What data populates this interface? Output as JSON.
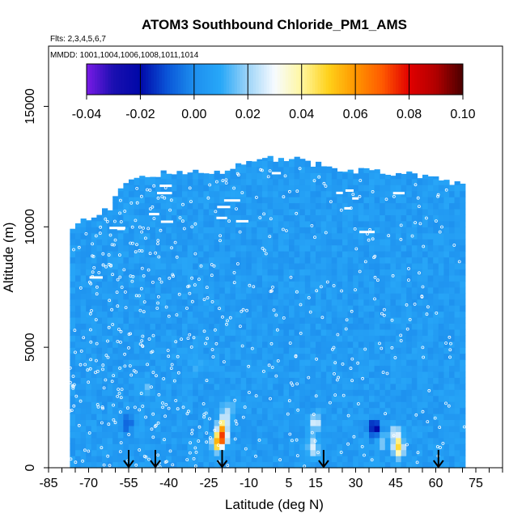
{
  "chart_data": {
    "type": "heatmap",
    "title": "ATOM3 Southbound Chloride_PM1_AMS",
    "flights_label": "Flts: 2,3,4,5,6,7",
    "mmdd_label": "MMDD: 1001,1004,1006,1008,1011,1014",
    "xlabel": "Latitude (deg N)",
    "ylabel": "Altitude (m)",
    "xlim": [
      -85,
      85
    ],
    "ylim": [
      0,
      17500
    ],
    "x_ticks": [
      -85,
      -70,
      -55,
      -40,
      -25,
      -10,
      5,
      15,
      30,
      45,
      60,
      75
    ],
    "x_minor_ticks": [
      -80,
      -75,
      -65,
      -60,
      -50,
      -45,
      -35,
      -30,
      -20,
      -15,
      -5,
      0,
      10,
      20,
      25,
      35,
      40,
      50,
      55,
      65,
      70,
      80,
      85
    ],
    "y_ticks": [
      0,
      5000,
      10000,
      15000
    ],
    "colorbar": {
      "min": -0.04,
      "max": 0.1,
      "ticks": [
        "-0.04",
        "-0.02",
        "0.00",
        "0.02",
        "0.04",
        "0.06",
        "0.08",
        "0.10"
      ],
      "stops": [
        {
          "value": -0.04,
          "color": "#7a1be6"
        },
        {
          "value": -0.03,
          "color": "#1a0fb0"
        },
        {
          "value": -0.02,
          "color": "#0008a8"
        },
        {
          "value": -0.01,
          "color": "#0a55d8"
        },
        {
          "value": 0.0,
          "color": "#1d8fee"
        },
        {
          "value": 0.01,
          "color": "#28a8f8"
        },
        {
          "value": 0.02,
          "color": "#9ed4f8"
        },
        {
          "value": 0.03,
          "color": "#f7fbff"
        },
        {
          "value": 0.04,
          "color": "#fff7a0"
        },
        {
          "value": 0.05,
          "color": "#ffd11a"
        },
        {
          "value": 0.06,
          "color": "#ff9600"
        },
        {
          "value": 0.07,
          "color": "#ff5a00"
        },
        {
          "value": 0.08,
          "color": "#e20000"
        },
        {
          "value": 0.09,
          "color": "#b00000"
        },
        {
          "value": 0.1,
          "color": "#4a0000"
        }
      ]
    },
    "background_value": 0.005,
    "field_extent": {
      "lat_min": -77,
      "lat_max": 71,
      "top_altitude_by_lat": [
        [
          -77,
          10000
        ],
        [
          -72,
          10200
        ],
        [
          -62,
          10800
        ],
        [
          -57,
          11700
        ],
        [
          -45,
          12200
        ],
        [
          -20,
          12300
        ],
        [
          -10,
          12800
        ],
        [
          10,
          12800
        ],
        [
          20,
          12400
        ],
        [
          50,
          12200
        ],
        [
          70,
          11800
        ],
        [
          71,
          9000
        ]
      ]
    },
    "hotspots": [
      {
        "lat": -20,
        "alt": 1200,
        "value": 0.065
      },
      {
        "lat": -20,
        "alt": 1700,
        "value": 0.03
      },
      {
        "lat": -22,
        "alt": 900,
        "value": 0.045
      },
      {
        "lat": -18,
        "alt": 2200,
        "value": 0.025
      },
      {
        "lat": 15,
        "alt": 1700,
        "value": 0.028
      },
      {
        "lat": 14,
        "alt": 700,
        "value": 0.03
      },
      {
        "lat": 37,
        "alt": 1500,
        "value": -0.025
      },
      {
        "lat": 40,
        "alt": 1000,
        "value": 0.02
      },
      {
        "lat": 46,
        "alt": 700,
        "value": 0.05
      },
      {
        "lat": 45,
        "alt": 1300,
        "value": 0.025
      },
      {
        "lat": -48,
        "alt": 3200,
        "value": 0.015
      },
      {
        "lat": -30,
        "alt": 4000,
        "value": 0.012
      },
      {
        "lat": -55,
        "alt": 1700,
        "value": -0.008
      }
    ],
    "arrows_lat": [
      -55,
      -45,
      -20,
      18,
      61
    ]
  }
}
